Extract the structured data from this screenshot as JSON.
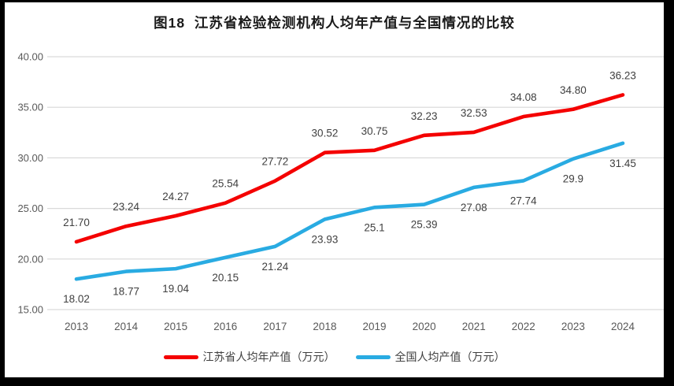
{
  "title": "图18  江苏省检验检测机构人均年产值与全国情况的比较",
  "chart_data": {
    "type": "line",
    "categories": [
      "2013",
      "2014",
      "2015",
      "2016",
      "2017",
      "2018",
      "2019",
      "2020",
      "2021",
      "2022",
      "2023",
      "2024"
    ],
    "series": [
      {
        "name": "江苏省人均年产值（万元）",
        "color": "#f40000",
        "values": [
          21.7,
          23.24,
          24.27,
          25.54,
          27.72,
          30.52,
          30.75,
          32.23,
          32.53,
          34.08,
          34.8,
          36.23
        ],
        "labels": [
          "21.70",
          "23.24",
          "24.27",
          "25.54",
          "27.72",
          "30.52",
          "30.75",
          "32.23",
          "32.53",
          "34.08",
          "34.80",
          "36.23"
        ],
        "label_position": "above"
      },
      {
        "name": "全国人均产值（万元）",
        "color": "#29abe2",
        "values": [
          18.02,
          18.77,
          19.04,
          20.15,
          21.24,
          23.93,
          25.1,
          25.39,
          27.08,
          27.74,
          29.9,
          31.45
        ],
        "labels": [
          "18.02",
          "18.77",
          "19.04",
          "20.15",
          "21.24",
          "23.93",
          "25.1",
          "25.39",
          "27.08",
          "27.74",
          "29.9",
          "31.45"
        ],
        "label_position": "below"
      }
    ],
    "ylim": [
      15,
      40
    ],
    "ytick_step": 5,
    "ytick_labels": [
      "15.00",
      "20.00",
      "25.00",
      "30.00",
      "35.00",
      "40.00"
    ],
    "xlabel": "",
    "ylabel": "",
    "grid": true,
    "legend_position": "bottom"
  },
  "colors": {
    "grid": "#d9d9d9",
    "axis_text": "#595959",
    "data_label_text": "#404040",
    "title_text": "#1a1a1a",
    "frame": "#000000",
    "background": "#ffffff"
  }
}
